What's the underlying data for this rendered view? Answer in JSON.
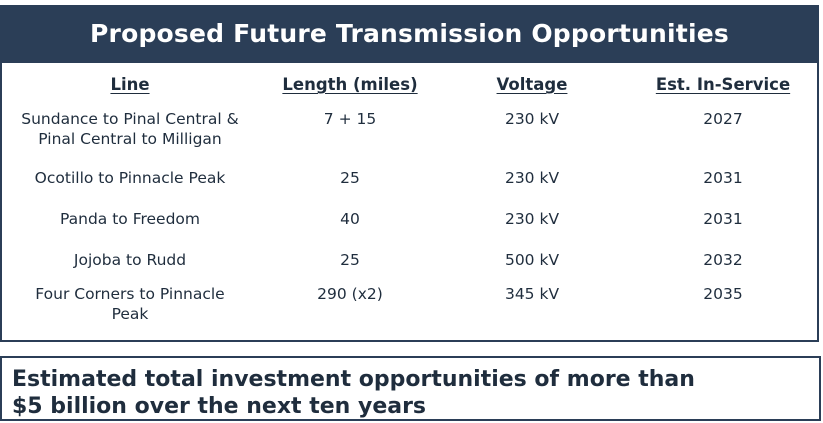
{
  "panel": {
    "title": "Proposed Future Transmission Opportunities",
    "columns": {
      "line": "Line",
      "length": "Length (miles)",
      "voltage": "Voltage",
      "in_service": "Est. In-Service"
    },
    "rows": [
      {
        "line_1": "Sundance to Pinal Central &",
        "line_2": "Pinal Central to Milligan",
        "length": "7 + 15",
        "voltage": "230 kV",
        "in_service": "2027"
      },
      {
        "line_1": "Ocotillo to Pinnacle Peak",
        "line_2": "",
        "length": "25",
        "voltage": "230 kV",
        "in_service": "2031"
      },
      {
        "line_1": "Panda to Freedom",
        "line_2": "",
        "length": "40",
        "voltage": "230 kV",
        "in_service": "2031"
      },
      {
        "line_1": "Jojoba to Rudd",
        "line_2": "",
        "length": "25",
        "voltage": "500 kV",
        "in_service": "2032"
      },
      {
        "line_1": "Four Corners to Pinnacle",
        "line_2": "Peak",
        "length": "290 (x2)",
        "voltage": "345 kV",
        "in_service": "2035"
      }
    ]
  },
  "summary": {
    "line_1": "Estimated total investment opportunities of more than",
    "line_2": "$5 billion over the next ten years"
  },
  "colors": {
    "header_bg": "#2b3e57",
    "text": "#1f2d3d"
  }
}
